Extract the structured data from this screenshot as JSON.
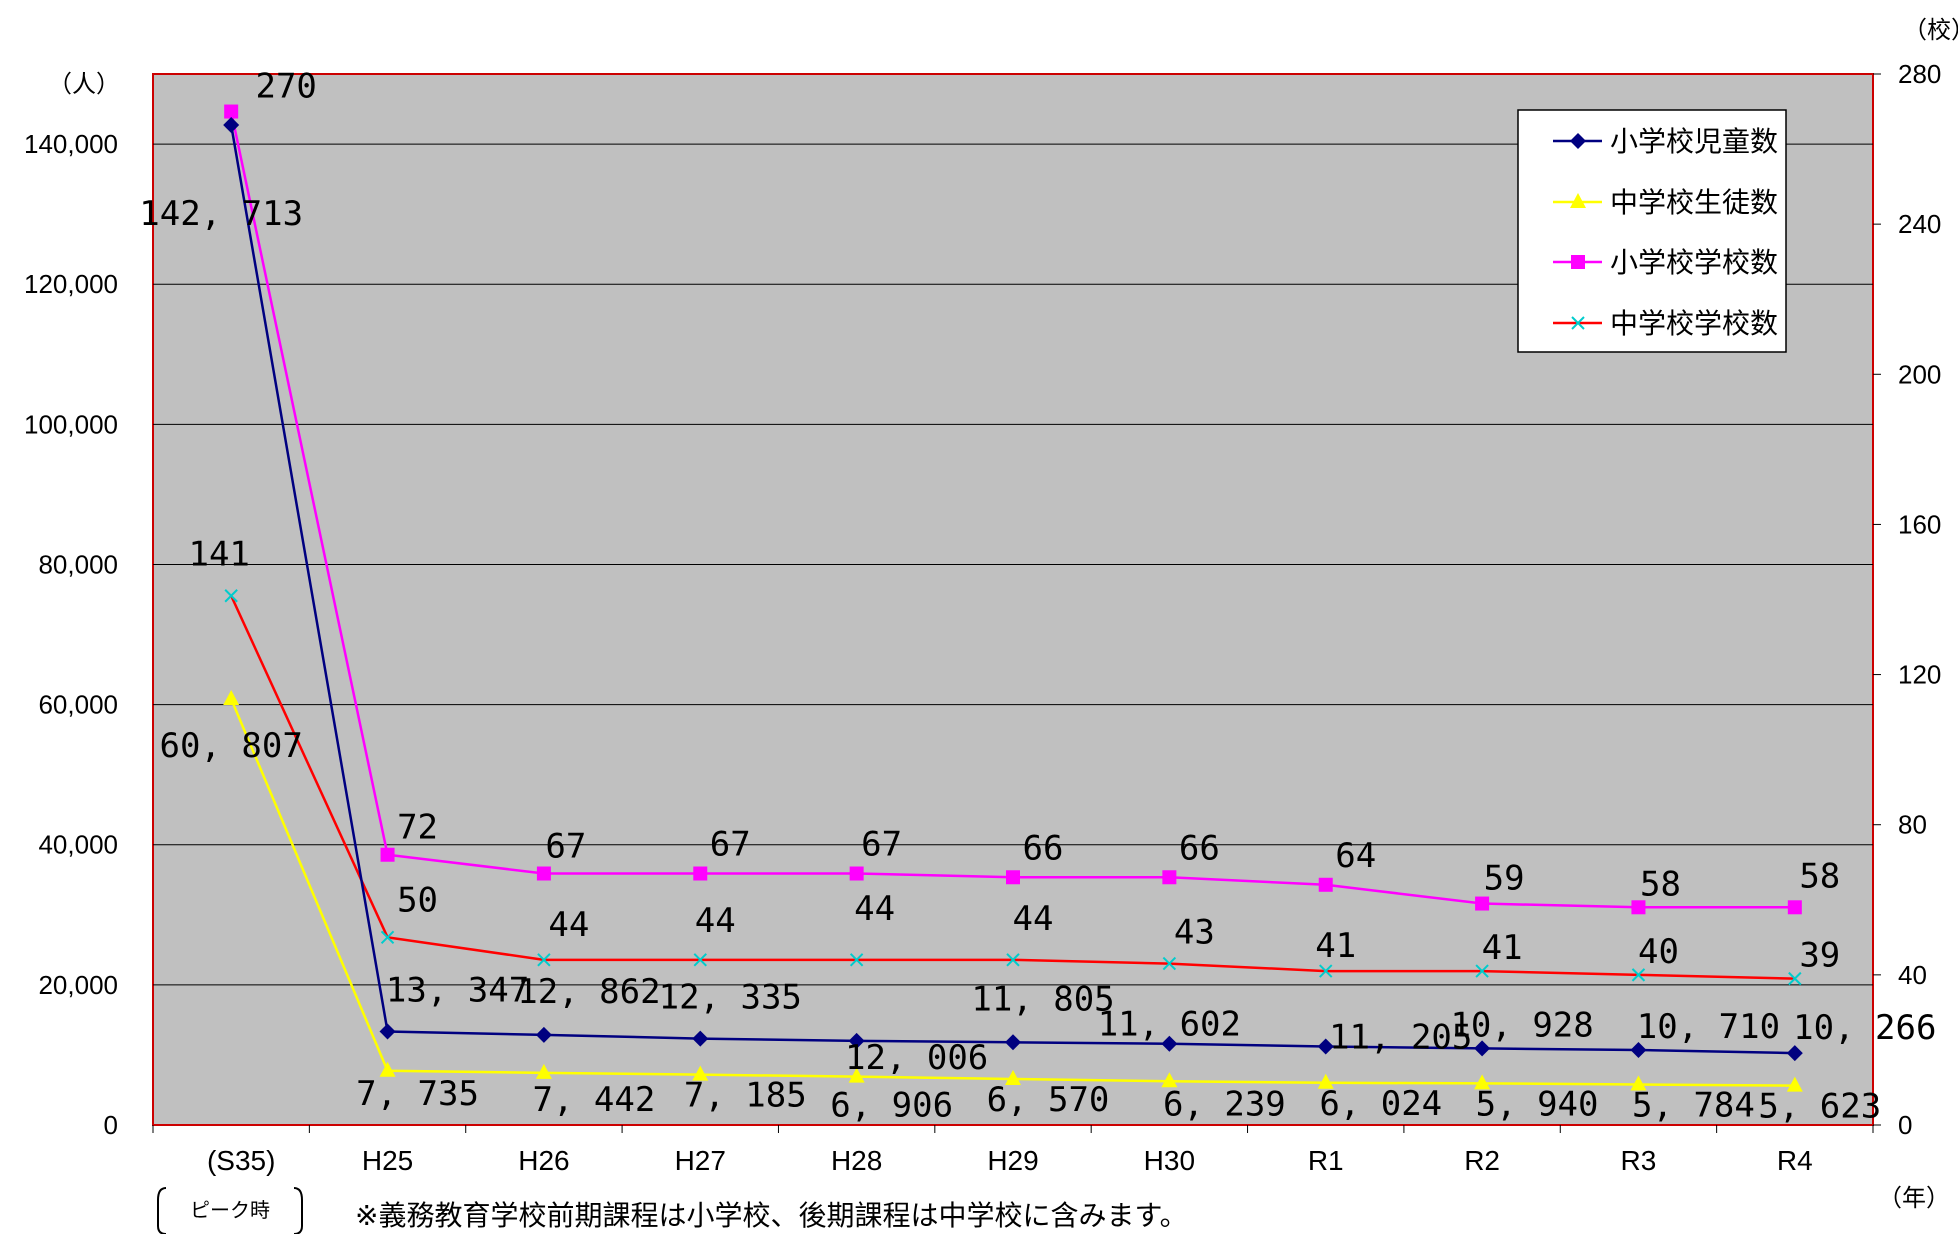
{
  "chart_data": {
    "type": "line",
    "categories": [
      "(S35)",
      "H25",
      "H26",
      "H27",
      "H28",
      "H29",
      "H30",
      "R1",
      "R2",
      "R3",
      "R4"
    ],
    "peak_label": "ピーク時",
    "left_axis": {
      "unit": "（人）",
      "ylim": [
        0,
        150000
      ],
      "ticks": [
        0,
        20000,
        40000,
        60000,
        80000,
        100000,
        120000,
        140000
      ],
      "tick_labels": [
        "0",
        "20,000",
        "40,000",
        "60,000",
        "80,000",
        "100,000",
        "120,000",
        "140,000"
      ]
    },
    "right_axis": {
      "unit": "（校）",
      "ylim": [
        0,
        280
      ],
      "ticks": [
        0,
        40,
        80,
        120,
        160,
        200,
        240,
        280
      ],
      "tick_labels": [
        "0",
        "40",
        "80",
        "120",
        "160",
        "200",
        "240",
        "280"
      ]
    },
    "x_unit": "（年）",
    "series": [
      {
        "name": "小学校児童数",
        "axis": "left",
        "color": "#000080",
        "marker": "diamond",
        "values": [
          142713,
          13347,
          12862,
          12335,
          12006,
          11805,
          11602,
          11205,
          10928,
          10710,
          10266
        ],
        "labels": [
          "142, 713",
          "13, 347",
          "12, 862",
          "12, 335",
          "12, 006",
          "11, 805",
          "11, 602",
          "11, 205",
          "10, 928",
          "10, 710",
          "10, 266"
        ]
      },
      {
        "name": "中学校生徒数",
        "axis": "left",
        "color": "#ffff00",
        "marker": "triangle",
        "values": [
          60807,
          7735,
          7442,
          7185,
          6906,
          6570,
          6239,
          6024,
          5940,
          5784,
          5623
        ],
        "labels": [
          "60, 807",
          "7, 735",
          "7, 442",
          "7, 185",
          "6, 906",
          "6, 570",
          "6, 239",
          "6, 024",
          "5, 940",
          "5, 784",
          "5, 623"
        ]
      },
      {
        "name": "小学校学校数",
        "axis": "right",
        "color": "#ff00ff",
        "marker": "square",
        "values": [
          270,
          72,
          67,
          67,
          67,
          66,
          66,
          64,
          59,
          58,
          58
        ],
        "labels": [
          "270",
          "72",
          "67",
          "67",
          "67",
          "66",
          "66",
          "64",
          "59",
          "58",
          "58"
        ]
      },
      {
        "name": "中学校学校数",
        "axis": "right",
        "color": "#ff0000",
        "marker_color": "#00cccc",
        "marker": "x",
        "values": [
          141,
          50,
          44,
          44,
          44,
          44,
          43,
          41,
          41,
          40,
          39
        ],
        "labels": [
          "141",
          "50",
          "44",
          "44",
          "44",
          "44",
          "43",
          "41",
          "41",
          "40",
          "39"
        ]
      }
    ],
    "grid": true,
    "legend_position": "top-right",
    "plot_background": "#c0c0c0",
    "plot_border": "#cc0000"
  },
  "footnote": "※義務教育学校前期課程は小学校、後期課程は中学校に含みます。"
}
